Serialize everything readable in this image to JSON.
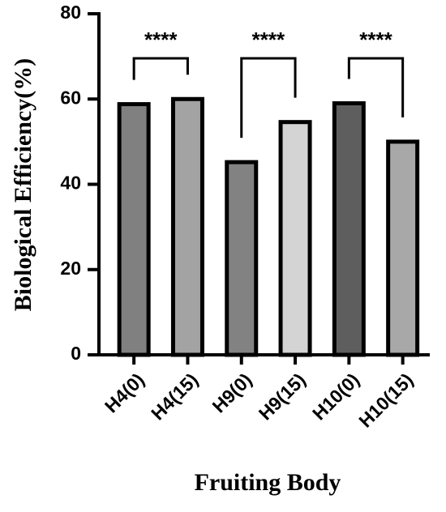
{
  "chart_data": {
    "type": "bar",
    "x_label": "Fruiting Body",
    "y_label": "Biological Efficiency(%)",
    "categories": [
      "H4(0)",
      "H4(15)",
      "H9(0)",
      "H9(15)",
      "H10(0)",
      "H10(15)"
    ],
    "values": [
      58.8,
      60,
      45.2,
      54.6,
      59,
      50
    ],
    "colors": [
      "#808080",
      "#a3a3a3",
      "#828282",
      "#d4d4d4",
      "#5e5e5e",
      "#a8a8a8"
    ],
    "ylim": [
      0,
      80
    ],
    "yticks": [
      0,
      20,
      40,
      60,
      80
    ],
    "annotations": [
      "****",
      "****",
      "****"
    ]
  }
}
